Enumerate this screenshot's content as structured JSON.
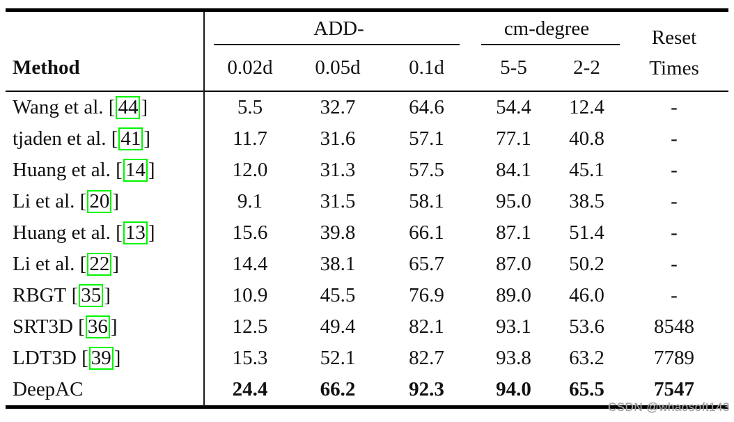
{
  "punct": {
    "open": "[",
    "close": "]"
  },
  "colors": {
    "citation_box": "#00f500",
    "rule": "#000000",
    "watermark": "#a3a3a3"
  },
  "watermark": "CSDN @whaosoft143",
  "header": {
    "method": "Method",
    "groups": [
      {
        "label": "ADD-",
        "cols": [
          "0.02d",
          "0.05d",
          "0.1d"
        ]
      },
      {
        "label": "cm-degree",
        "cols": [
          "5-5",
          "2-2"
        ]
      }
    ],
    "reset1": "Reset",
    "reset2": "Times"
  },
  "rows": [
    {
      "method": "Wang et al.",
      "cite": "44",
      "v": [
        "5.5",
        "32.7",
        "64.6",
        "54.4",
        "12.4",
        "-"
      ]
    },
    {
      "method": "tjaden et al.",
      "cite": "41",
      "v": [
        "11.7",
        "31.6",
        "57.1",
        "77.1",
        "40.8",
        "-"
      ]
    },
    {
      "method": "Huang et al.",
      "cite": "14",
      "v": [
        "12.0",
        "31.3",
        "57.5",
        "84.1",
        "45.1",
        "-"
      ]
    },
    {
      "method": "Li et al.",
      "cite": "20",
      "v": [
        "9.1",
        "31.5",
        "58.1",
        "95.0",
        "38.5",
        "-"
      ]
    },
    {
      "method": "Huang et al.",
      "cite": "13",
      "v": [
        "15.6",
        "39.8",
        "66.1",
        "87.1",
        "51.4",
        "-"
      ]
    },
    {
      "method": "Li et al.",
      "cite": "22",
      "v": [
        "14.4",
        "38.1",
        "65.7",
        "87.0",
        "50.2",
        "-"
      ]
    },
    {
      "method": "RBGT",
      "cite": "35",
      "v": [
        "10.9",
        "45.5",
        "76.9",
        "89.0",
        "46.0",
        "-"
      ]
    },
    {
      "method": "SRT3D",
      "cite": "36",
      "v": [
        "12.5",
        "49.4",
        "82.1",
        "93.1",
        "53.6",
        "8548"
      ]
    },
    {
      "method": "LDT3D",
      "cite": "39",
      "v": [
        "15.3",
        "52.1",
        "82.7",
        "93.8",
        "63.2",
        "7789"
      ]
    },
    {
      "method": "DeepAC",
      "cite": null,
      "v": [
        "24.4",
        "66.2",
        "92.3",
        "94.0",
        "65.5",
        "7547"
      ]
    }
  ]
}
